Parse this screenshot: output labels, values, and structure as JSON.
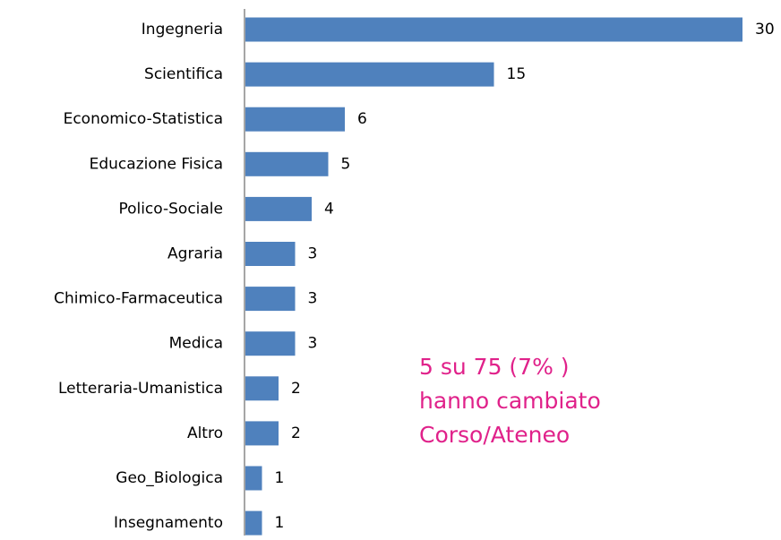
{
  "chart_data": {
    "type": "bar",
    "orientation": "horizontal",
    "categories": [
      "Ingegneria",
      "Scientifica",
      "Economico-Statistica",
      "Educazione Fisica",
      "Polico-Sociale",
      "Agraria",
      "Chimico-Farmaceutica",
      "Medica",
      "Letteraria-Umanistica",
      "Altro",
      "Geo_Biologica",
      "Insegnamento"
    ],
    "values": [
      30,
      15,
      6,
      5,
      4,
      3,
      3,
      3,
      2,
      2,
      1,
      1
    ],
    "color": "#4f81bd",
    "annotation": {
      "lines": [
        "5 su 75 (7% )",
        "hanno cambiato",
        "Corso/Ateneo"
      ],
      "color": "#e0218a"
    }
  }
}
